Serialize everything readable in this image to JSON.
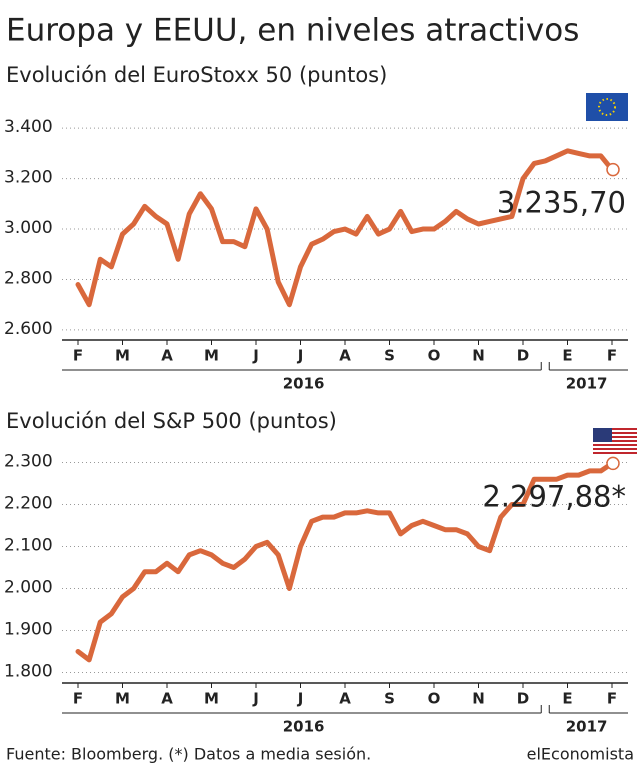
{
  "title": "Europa y EEUU, en niveles atractivos",
  "source": "Fuente: Bloomberg. (*) Datos a media sesión.",
  "brand": "elEconomista",
  "chart_data": [
    {
      "type": "line",
      "title": "Evolución del EuroStoxx 50 (puntos)",
      "color": "#d9683c",
      "grid": true,
      "categories": [
        "F",
        null,
        null,
        null,
        "M",
        null,
        null,
        null,
        "A",
        null,
        null,
        null,
        "M",
        null,
        null,
        null,
        "J",
        null,
        null,
        null,
        "J",
        null,
        null,
        null,
        "A",
        null,
        null,
        null,
        "S",
        null,
        null,
        null,
        "O",
        null,
        null,
        null,
        "N",
        null,
        null,
        null,
        "D",
        null,
        null,
        null,
        "E",
        null,
        null,
        null,
        "F"
      ],
      "values": [
        2780,
        2700,
        2880,
        2850,
        2980,
        3020,
        3090,
        3050,
        3020,
        2880,
        3060,
        3140,
        3080,
        2950,
        2950,
        2930,
        3080,
        3000,
        2790,
        2700,
        2850,
        2940,
        2960,
        2990,
        3000,
        2980,
        3050,
        2980,
        3000,
        3070,
        2990,
        3000,
        3000,
        3030,
        3070,
        3040,
        3020,
        3030,
        3040,
        3050,
        3200,
        3260,
        3270,
        3290,
        3310,
        3300,
        3290,
        3290,
        3235.7
      ],
      "value_labels": [
        null,
        null,
        null,
        null,
        null,
        null,
        null,
        null,
        null,
        null,
        null,
        null,
        null,
        null,
        null,
        null,
        null,
        null,
        null,
        null,
        null,
        null,
        null,
        null,
        null,
        null,
        null,
        null,
        null,
        null,
        null,
        null,
        null,
        null,
        null,
        null,
        null,
        null,
        null,
        null,
        null,
        null,
        null,
        null,
        null,
        null,
        null,
        null,
        "3.235,70"
      ],
      "ylim": [
        2560,
        3480
      ],
      "yticks": [
        {
          "value": 2600,
          "label": "2.600"
        },
        {
          "value": 2800,
          "label": "2.800"
        },
        {
          "value": 3000,
          "label": "3.000"
        },
        {
          "value": 3200,
          "label": "3.200"
        },
        {
          "value": 3400,
          "label": "3.400"
        }
      ],
      "year_labels": [
        "2016",
        "2017"
      ]
    },
    {
      "type": "line",
      "title": "Evolución del S&P 500 (puntos)",
      "color": "#d9683c",
      "grid": true,
      "categories": [
        "F",
        null,
        null,
        null,
        "M",
        null,
        null,
        null,
        "A",
        null,
        null,
        null,
        "M",
        null,
        null,
        null,
        "J",
        null,
        null,
        null,
        "J",
        null,
        null,
        null,
        "A",
        null,
        null,
        null,
        "S",
        null,
        null,
        null,
        "O",
        null,
        null,
        null,
        "N",
        null,
        null,
        null,
        "D",
        null,
        null,
        null,
        "E",
        null,
        null,
        null,
        "F"
      ],
      "values": [
        1850,
        1830,
        1920,
        1940,
        1980,
        2000,
        2040,
        2040,
        2060,
        2040,
        2080,
        2090,
        2080,
        2060,
        2050,
        2070,
        2100,
        2110,
        2080,
        2000,
        2100,
        2160,
        2170,
        2170,
        2180,
        2180,
        2185,
        2180,
        2180,
        2130,
        2150,
        2160,
        2150,
        2140,
        2140,
        2130,
        2100,
        2090,
        2170,
        2200,
        2200,
        2260,
        2260,
        2260,
        2270,
        2270,
        2280,
        2280,
        2297.88
      ],
      "value_labels": [
        null,
        null,
        null,
        null,
        null,
        null,
        null,
        null,
        null,
        null,
        null,
        null,
        null,
        null,
        null,
        null,
        null,
        null,
        null,
        null,
        null,
        null,
        null,
        null,
        null,
        null,
        null,
        null,
        null,
        null,
        null,
        null,
        null,
        null,
        null,
        null,
        null,
        null,
        null,
        null,
        null,
        null,
        null,
        null,
        null,
        null,
        null,
        null,
        "2.297,88*"
      ],
      "ylim": [
        1775,
        2325
      ],
      "yticks": [
        {
          "value": 1800,
          "label": "1.800"
        },
        {
          "value": 1900,
          "label": "1.900"
        },
        {
          "value": 2000,
          "label": "2.000"
        },
        {
          "value": 2100,
          "label": "2.100"
        },
        {
          "value": 2200,
          "label": "2.200"
        },
        {
          "value": 2300,
          "label": "2.300"
        }
      ],
      "year_labels": [
        "2016",
        "2017"
      ]
    }
  ]
}
